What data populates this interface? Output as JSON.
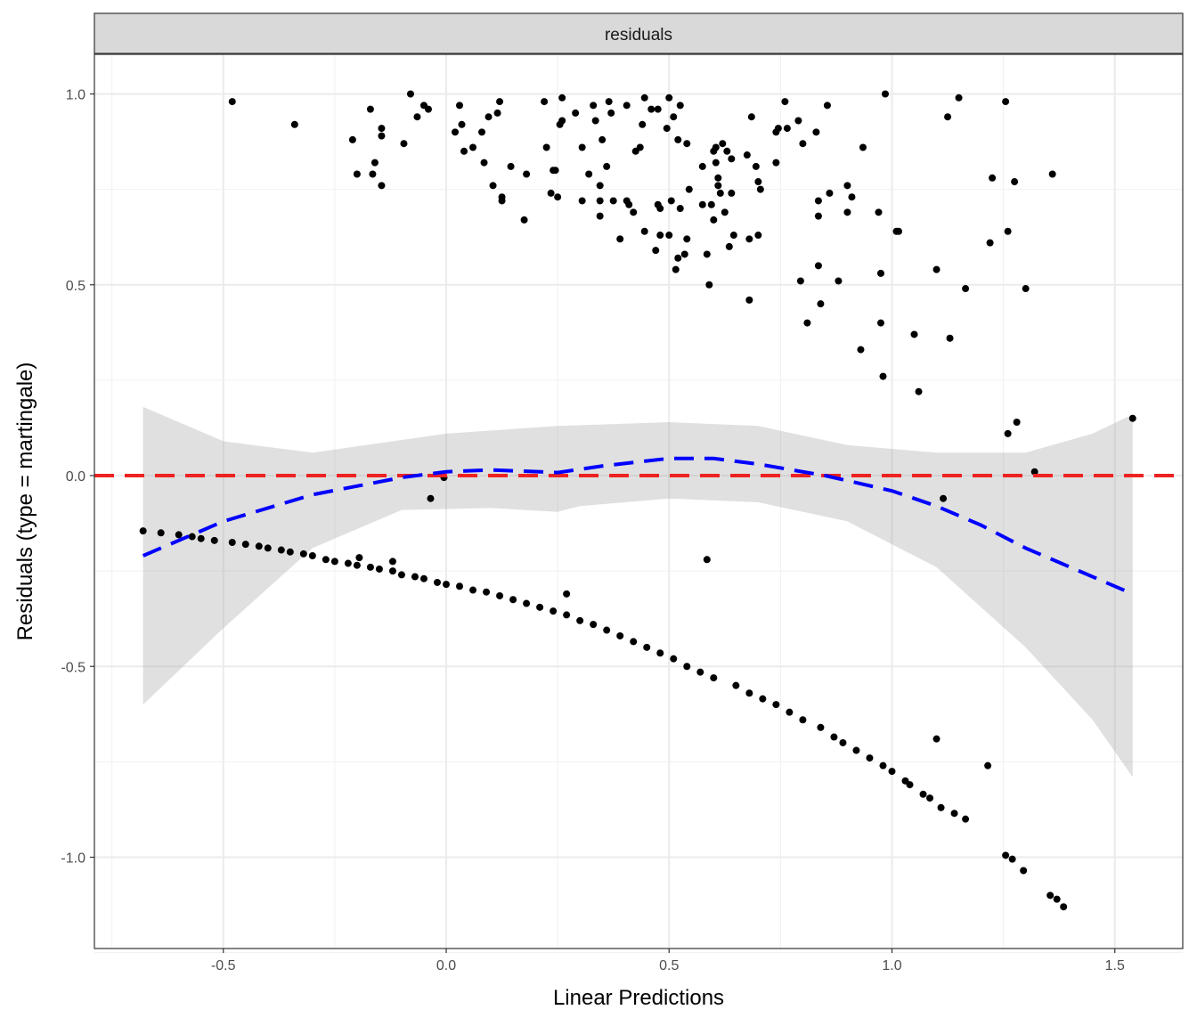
{
  "chart_data": {
    "type": "scatter",
    "strip_title": "residuals",
    "xlabel": "Linear Predictions",
    "ylabel": "Residuals (type = martingale)",
    "xlim": [
      -0.76,
      1.65
    ],
    "ylim": [
      -1.23,
      1.1
    ],
    "xticks": [
      -0.5,
      0.0,
      0.5,
      1.0,
      1.5
    ],
    "xtick_labels": [
      "-0.5",
      "0.0",
      "0.5",
      "1.0",
      "1.5"
    ],
    "yticks": [
      -1.0,
      -0.5,
      0.0,
      0.5,
      1.0
    ],
    "ytick_labels": [
      "-1.0",
      "-0.5",
      "0.0",
      "0.5",
      "1.0"
    ],
    "grid": true,
    "reference_line": {
      "y": 0,
      "color": "#ee2222",
      "style": "dashed"
    },
    "smooth": {
      "color": "#0000ff",
      "style": "dashed",
      "points": [
        [
          -0.68,
          -0.21
        ],
        [
          -0.5,
          -0.12
        ],
        [
          -0.3,
          -0.05
        ],
        [
          -0.1,
          -0.005
        ],
        [
          0,
          0.01
        ],
        [
          0.1,
          0.015
        ],
        [
          0.25,
          0.008
        ],
        [
          0.35,
          0.025
        ],
        [
          0.5,
          0.045
        ],
        [
          0.6,
          0.045
        ],
        [
          0.7,
          0.03
        ],
        [
          0.85,
          0.0
        ],
        [
          1.0,
          -0.04
        ],
        [
          1.1,
          -0.08
        ],
        [
          1.2,
          -0.13
        ],
        [
          1.3,
          -0.19
        ],
        [
          1.4,
          -0.24
        ],
        [
          1.54,
          -0.31
        ]
      ],
      "band_upper": [
        [
          -0.68,
          0.18
        ],
        [
          -0.5,
          0.09
        ],
        [
          -0.3,
          0.06
        ],
        [
          0,
          0.11
        ],
        [
          0.25,
          0.13
        ],
        [
          0.5,
          0.14
        ],
        [
          0.7,
          0.13
        ],
        [
          0.9,
          0.08
        ],
        [
          1.1,
          0.06
        ],
        [
          1.3,
          0.06
        ],
        [
          1.45,
          0.11
        ],
        [
          1.54,
          0.16
        ]
      ],
      "band_lower": [
        [
          -0.68,
          -0.6
        ],
        [
          -0.5,
          -0.4
        ],
        [
          -0.3,
          -0.19
        ],
        [
          -0.1,
          -0.09
        ],
        [
          0.1,
          -0.085
        ],
        [
          0.25,
          -0.095
        ],
        [
          0.3,
          -0.08
        ],
        [
          0.5,
          -0.06
        ],
        [
          0.7,
          -0.07
        ],
        [
          0.9,
          -0.12
        ],
        [
          1.1,
          -0.24
        ],
        [
          1.3,
          -0.45
        ],
        [
          1.45,
          -0.64
        ],
        [
          1.54,
          -0.79
        ]
      ]
    },
    "points": [
      [
        -0.48,
        0.98
      ],
      [
        -0.34,
        0.92
      ],
      [
        -0.21,
        0.88
      ],
      [
        -0.2,
        0.79
      ],
      [
        -0.17,
        0.96
      ],
      [
        -0.165,
        0.79
      ],
      [
        -0.16,
        0.82
      ],
      [
        -0.145,
        0.91
      ],
      [
        -0.145,
        0.89
      ],
      [
        -0.145,
        0.76
      ],
      [
        -0.095,
        0.87
      ],
      [
        -0.08,
        1.0
      ],
      [
        -0.065,
        0.94
      ],
      [
        -0.05,
        0.97
      ],
      [
        -0.04,
        0.96
      ],
      [
        0.02,
        0.9
      ],
      [
        0.03,
        0.97
      ],
      [
        0.035,
        0.92
      ],
      [
        0.04,
        0.85
      ],
      [
        0.06,
        0.86
      ],
      [
        0.08,
        0.9
      ],
      [
        0.085,
        0.82
      ],
      [
        0.095,
        0.94
      ],
      [
        0.105,
        0.76
      ],
      [
        0.115,
        0.95
      ],
      [
        0.12,
        0.98
      ],
      [
        0.125,
        0.72
      ],
      [
        0.125,
        0.73
      ],
      [
        0.145,
        0.81
      ],
      [
        0.175,
        0.67
      ],
      [
        0.18,
        0.79
      ],
      [
        0.22,
        0.98
      ],
      [
        0.225,
        0.86
      ],
      [
        0.235,
        0.74
      ],
      [
        0.24,
        0.8
      ],
      [
        0.245,
        0.8
      ],
      [
        0.25,
        0.73
      ],
      [
        0.255,
        0.92
      ],
      [
        0.26,
        0.99
      ],
      [
        0.26,
        0.93
      ],
      [
        0.29,
        0.95
      ],
      [
        0.305,
        0.86
      ],
      [
        0.305,
        0.72
      ],
      [
        0.32,
        0.79
      ],
      [
        0.33,
        0.97
      ],
      [
        0.335,
        0.93
      ],
      [
        0.345,
        0.76
      ],
      [
        0.345,
        0.72
      ],
      [
        0.345,
        0.68
      ],
      [
        0.35,
        0.88
      ],
      [
        0.36,
        0.81
      ],
      [
        0.365,
        0.98
      ],
      [
        0.37,
        0.95
      ],
      [
        0.375,
        0.72
      ],
      [
        0.39,
        0.62
      ],
      [
        0.405,
        0.97
      ],
      [
        0.405,
        0.72
      ],
      [
        0.41,
        0.71
      ],
      [
        0.42,
        0.69
      ],
      [
        0.425,
        0.85
      ],
      [
        0.435,
        0.86
      ],
      [
        0.44,
        0.92
      ],
      [
        0.445,
        0.99
      ],
      [
        0.445,
        0.64
      ],
      [
        0.46,
        0.96
      ],
      [
        0.47,
        0.59
      ],
      [
        0.475,
        0.96
      ],
      [
        0.475,
        0.71
      ],
      [
        0.48,
        0.7
      ],
      [
        0.48,
        0.63
      ],
      [
        0.495,
        0.91
      ],
      [
        0.5,
        0.99
      ],
      [
        0.5,
        0.63
      ],
      [
        0.505,
        0.72
      ],
      [
        0.51,
        0.94
      ],
      [
        0.515,
        0.54
      ],
      [
        0.52,
        0.57
      ],
      [
        0.52,
        0.88
      ],
      [
        0.525,
        0.97
      ],
      [
        0.525,
        0.7
      ],
      [
        0.535,
        0.58
      ],
      [
        0.54,
        0.62
      ],
      [
        0.54,
        0.87
      ],
      [
        0.545,
        0.75
      ],
      [
        0.575,
        0.71
      ],
      [
        0.575,
        0.81
      ],
      [
        0.585,
        0.58
      ],
      [
        0.59,
        0.5
      ],
      [
        0.595,
        0.71
      ],
      [
        0.6,
        0.85
      ],
      [
        0.6,
        0.67
      ],
      [
        0.605,
        0.82
      ],
      [
        0.605,
        0.86
      ],
      [
        0.61,
        0.78
      ],
      [
        0.61,
        0.76
      ],
      [
        0.615,
        0.74
      ],
      [
        0.62,
        0.87
      ],
      [
        0.625,
        0.69
      ],
      [
        0.63,
        0.85
      ],
      [
        0.635,
        0.6
      ],
      [
        0.64,
        0.83
      ],
      [
        0.64,
        0.74
      ],
      [
        0.645,
        0.63
      ],
      [
        0.675,
        0.84
      ],
      [
        0.68,
        0.62
      ],
      [
        0.68,
        0.46
      ],
      [
        0.685,
        0.94
      ],
      [
        0.695,
        0.81
      ],
      [
        0.7,
        0.77
      ],
      [
        0.7,
        0.63
      ],
      [
        0.705,
        0.75
      ],
      [
        0.74,
        0.82
      ],
      [
        0.74,
        0.9
      ],
      [
        0.745,
        0.91
      ],
      [
        0.76,
        0.98
      ],
      [
        0.765,
        0.91
      ],
      [
        0.79,
        0.93
      ],
      [
        0.795,
        0.51
      ],
      [
        0.8,
        0.87
      ],
      [
        0.81,
        0.4
      ],
      [
        0.83,
        0.9
      ],
      [
        0.835,
        0.72
      ],
      [
        0.835,
        0.68
      ],
      [
        0.835,
        0.55
      ],
      [
        0.84,
        0.45
      ],
      [
        0.855,
        0.97
      ],
      [
        0.86,
        0.74
      ],
      [
        0.88,
        0.51
      ],
      [
        0.9,
        0.76
      ],
      [
        0.9,
        0.69
      ],
      [
        0.91,
        0.73
      ],
      [
        0.93,
        0.33
      ],
      [
        0.935,
        0.86
      ],
      [
        0.97,
        0.69
      ],
      [
        0.975,
        0.53
      ],
      [
        0.975,
        0.4
      ],
      [
        0.98,
        0.26
      ],
      [
        0.985,
        1.0
      ],
      [
        1.01,
        0.64
      ],
      [
        1.015,
        0.64
      ],
      [
        1.05,
        0.37
      ],
      [
        1.06,
        0.22
      ],
      [
        1.1,
        0.54
      ],
      [
        1.125,
        0.94
      ],
      [
        1.13,
        0.36
      ],
      [
        1.15,
        0.99
      ],
      [
        1.165,
        0.49
      ],
      [
        1.22,
        0.61
      ],
      [
        1.225,
        0.78
      ],
      [
        1.255,
        0.98
      ],
      [
        1.26,
        0.64
      ],
      [
        1.26,
        0.11
      ],
      [
        1.275,
        0.77
      ],
      [
        1.28,
        0.14
      ],
      [
        1.3,
        0.49
      ],
      [
        1.36,
        0.79
      ],
      [
        1.54,
        0.15
      ],
      [
        -0.035,
        -0.06
      ],
      [
        -0.005,
        -0.005
      ],
      [
        1.32,
        0.01
      ],
      [
        1.115,
        -0.06
      ],
      [
        0.585,
        -0.22
      ],
      [
        0.27,
        -0.31
      ],
      [
        -0.195,
        -0.215
      ],
      [
        -0.12,
        -0.225
      ],
      [
        1.1,
        -0.69
      ],
      [
        1.215,
        -0.76
      ],
      [
        -0.68,
        -0.145
      ],
      [
        -0.64,
        -0.15
      ],
      [
        -0.6,
        -0.155
      ],
      [
        -0.57,
        -0.16
      ],
      [
        -0.55,
        -0.165
      ],
      [
        -0.52,
        -0.17
      ],
      [
        -0.48,
        -0.175
      ],
      [
        -0.45,
        -0.18
      ],
      [
        -0.42,
        -0.185
      ],
      [
        -0.4,
        -0.19
      ],
      [
        -0.37,
        -0.195
      ],
      [
        -0.35,
        -0.2
      ],
      [
        -0.32,
        -0.205
      ],
      [
        -0.3,
        -0.21
      ],
      [
        -0.27,
        -0.22
      ],
      [
        -0.25,
        -0.225
      ],
      [
        -0.22,
        -0.23
      ],
      [
        -0.2,
        -0.235
      ],
      [
        -0.17,
        -0.24
      ],
      [
        -0.15,
        -0.245
      ],
      [
        -0.12,
        -0.25
      ],
      [
        -0.1,
        -0.26
      ],
      [
        -0.07,
        -0.265
      ],
      [
        -0.05,
        -0.27
      ],
      [
        -0.02,
        -0.28
      ],
      [
        0,
        -0.285
      ],
      [
        0.03,
        -0.29
      ],
      [
        0.06,
        -0.3
      ],
      [
        0.09,
        -0.305
      ],
      [
        0.12,
        -0.315
      ],
      [
        0.15,
        -0.325
      ],
      [
        0.18,
        -0.335
      ],
      [
        0.21,
        -0.345
      ],
      [
        0.24,
        -0.355
      ],
      [
        0.27,
        -0.365
      ],
      [
        0.3,
        -0.38
      ],
      [
        0.33,
        -0.39
      ],
      [
        0.36,
        -0.405
      ],
      [
        0.39,
        -0.42
      ],
      [
        0.42,
        -0.435
      ],
      [
        0.45,
        -0.45
      ],
      [
        0.48,
        -0.465
      ],
      [
        0.51,
        -0.48
      ],
      [
        0.54,
        -0.5
      ],
      [
        0.57,
        -0.515
      ],
      [
        0.6,
        -0.53
      ],
      [
        0.65,
        -0.55
      ],
      [
        0.68,
        -0.57
      ],
      [
        0.71,
        -0.585
      ],
      [
        0.74,
        -0.6
      ],
      [
        0.77,
        -0.62
      ],
      [
        0.8,
        -0.64
      ],
      [
        0.84,
        -0.66
      ],
      [
        0.87,
        -0.685
      ],
      [
        0.89,
        -0.7
      ],
      [
        0.92,
        -0.72
      ],
      [
        0.95,
        -0.74
      ],
      [
        0.98,
        -0.76
      ],
      [
        1.0,
        -0.775
      ],
      [
        1.03,
        -0.8
      ],
      [
        1.04,
        -0.81
      ],
      [
        1.07,
        -0.835
      ],
      [
        1.085,
        -0.845
      ],
      [
        1.11,
        -0.87
      ],
      [
        1.14,
        -0.885
      ],
      [
        1.165,
        -0.9
      ],
      [
        1.255,
        -0.995
      ],
      [
        1.27,
        -1.005
      ],
      [
        1.295,
        -1.035
      ],
      [
        1.355,
        -1.1
      ],
      [
        1.37,
        -1.11
      ],
      [
        1.385,
        -1.13
      ]
    ]
  }
}
